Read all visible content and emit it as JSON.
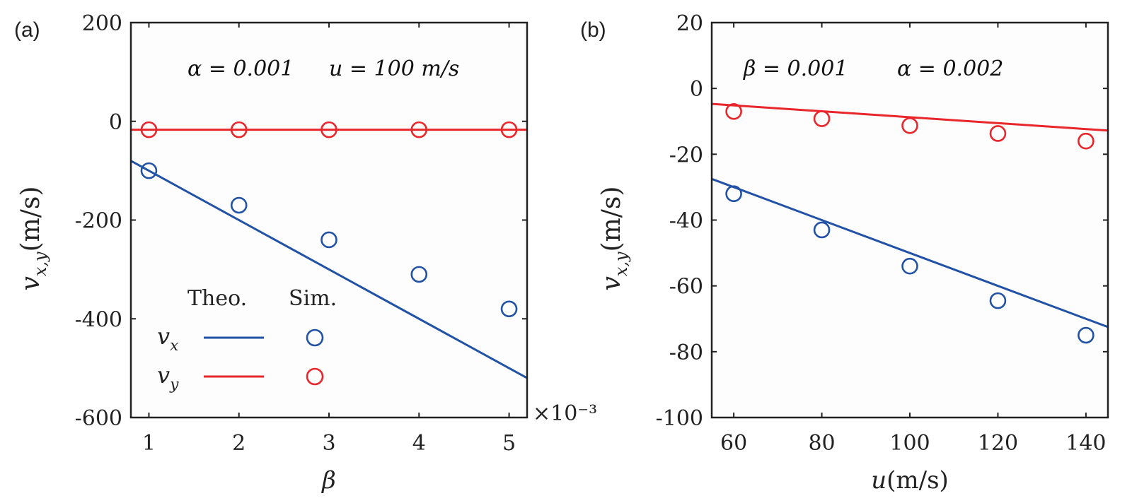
{
  "figure": {
    "colors": {
      "vx": "#2152a6",
      "vy": "#e8262b",
      "axis": "#222222"
    }
  },
  "chart_data": [
    {
      "panel": "(a)",
      "type": "line",
      "title": "",
      "annotation": {
        "alpha": "α = 0.001",
        "u": "u = 100 m/s"
      },
      "xlabel": "β",
      "ylabel": "v_{x,y}(m/s)",
      "x_multiplier": "×10⁻³",
      "xlim": [
        0.8,
        5.2
      ],
      "ylim": [
        -600,
        200
      ],
      "xticks": [
        1,
        2,
        3,
        4,
        5
      ],
      "xtick_labels": [
        "1",
        "2",
        "3",
        "4",
        "5"
      ],
      "yticks": [
        -600,
        -400,
        -200,
        0,
        200
      ],
      "ytick_labels": [
        "-600",
        "-400",
        "-200",
        "0",
        "200"
      ],
      "grid": false,
      "legend": {
        "placement": "bottom-left",
        "col_headers": [
          "Theo.",
          "Sim."
        ],
        "rows": [
          {
            "label": "v_x",
            "series": "vx"
          },
          {
            "label": "v_y",
            "series": "vy"
          }
        ]
      },
      "series": [
        {
          "name": "vx",
          "kind": "theory-line",
          "x": [
            0.8,
            5.2
          ],
          "y": [
            -80,
            -520
          ]
        },
        {
          "name": "vy",
          "kind": "theory-line",
          "x": [
            0.8,
            5.2
          ],
          "y": [
            -17,
            -17
          ]
        },
        {
          "name": "vx",
          "kind": "simulation-markers",
          "x": [
            1,
            2,
            3,
            4,
            5
          ],
          "y": [
            -100,
            -170,
            -240,
            -310,
            -380
          ]
        },
        {
          "name": "vy",
          "kind": "simulation-markers",
          "x": [
            1,
            2,
            3,
            4,
            5
          ],
          "y": [
            -17,
            -17,
            -17,
            -17,
            -17
          ]
        }
      ]
    },
    {
      "panel": "(b)",
      "type": "line",
      "title": "",
      "annotation": {
        "beta": "β = 0.001",
        "alpha": "α = 0.002"
      },
      "xlabel": "u(m/s)",
      "ylabel": "v_{x,y}(m/s)",
      "xlim": [
        55,
        145
      ],
      "ylim": [
        -100,
        20
      ],
      "xticks": [
        60,
        80,
        100,
        120,
        140
      ],
      "xtick_labels": [
        "60",
        "80",
        "100",
        "120",
        "140"
      ],
      "yticks": [
        -100,
        -80,
        -60,
        -40,
        -20,
        0,
        20
      ],
      "ytick_labels": [
        "-100",
        "-80",
        "-60",
        "-40",
        "-20",
        "0",
        "20"
      ],
      "grid": false,
      "series": [
        {
          "name": "vx",
          "kind": "theory-line",
          "x": [
            55,
            145
          ],
          "y": [
            -27.5,
            -72.5
          ]
        },
        {
          "name": "vy",
          "kind": "theory-line",
          "x": [
            55,
            145
          ],
          "y": [
            -4.7,
            -12.8
          ]
        },
        {
          "name": "vx",
          "kind": "simulation-markers",
          "x": [
            60,
            80,
            100,
            120,
            140
          ],
          "y": [
            -32,
            -43,
            -54,
            -64.5,
            -75
          ]
        },
        {
          "name": "vy",
          "kind": "simulation-markers",
          "x": [
            60,
            80,
            100,
            120,
            140
          ],
          "y": [
            -7,
            -9.2,
            -11.3,
            -13.7,
            -16
          ]
        }
      ]
    }
  ]
}
